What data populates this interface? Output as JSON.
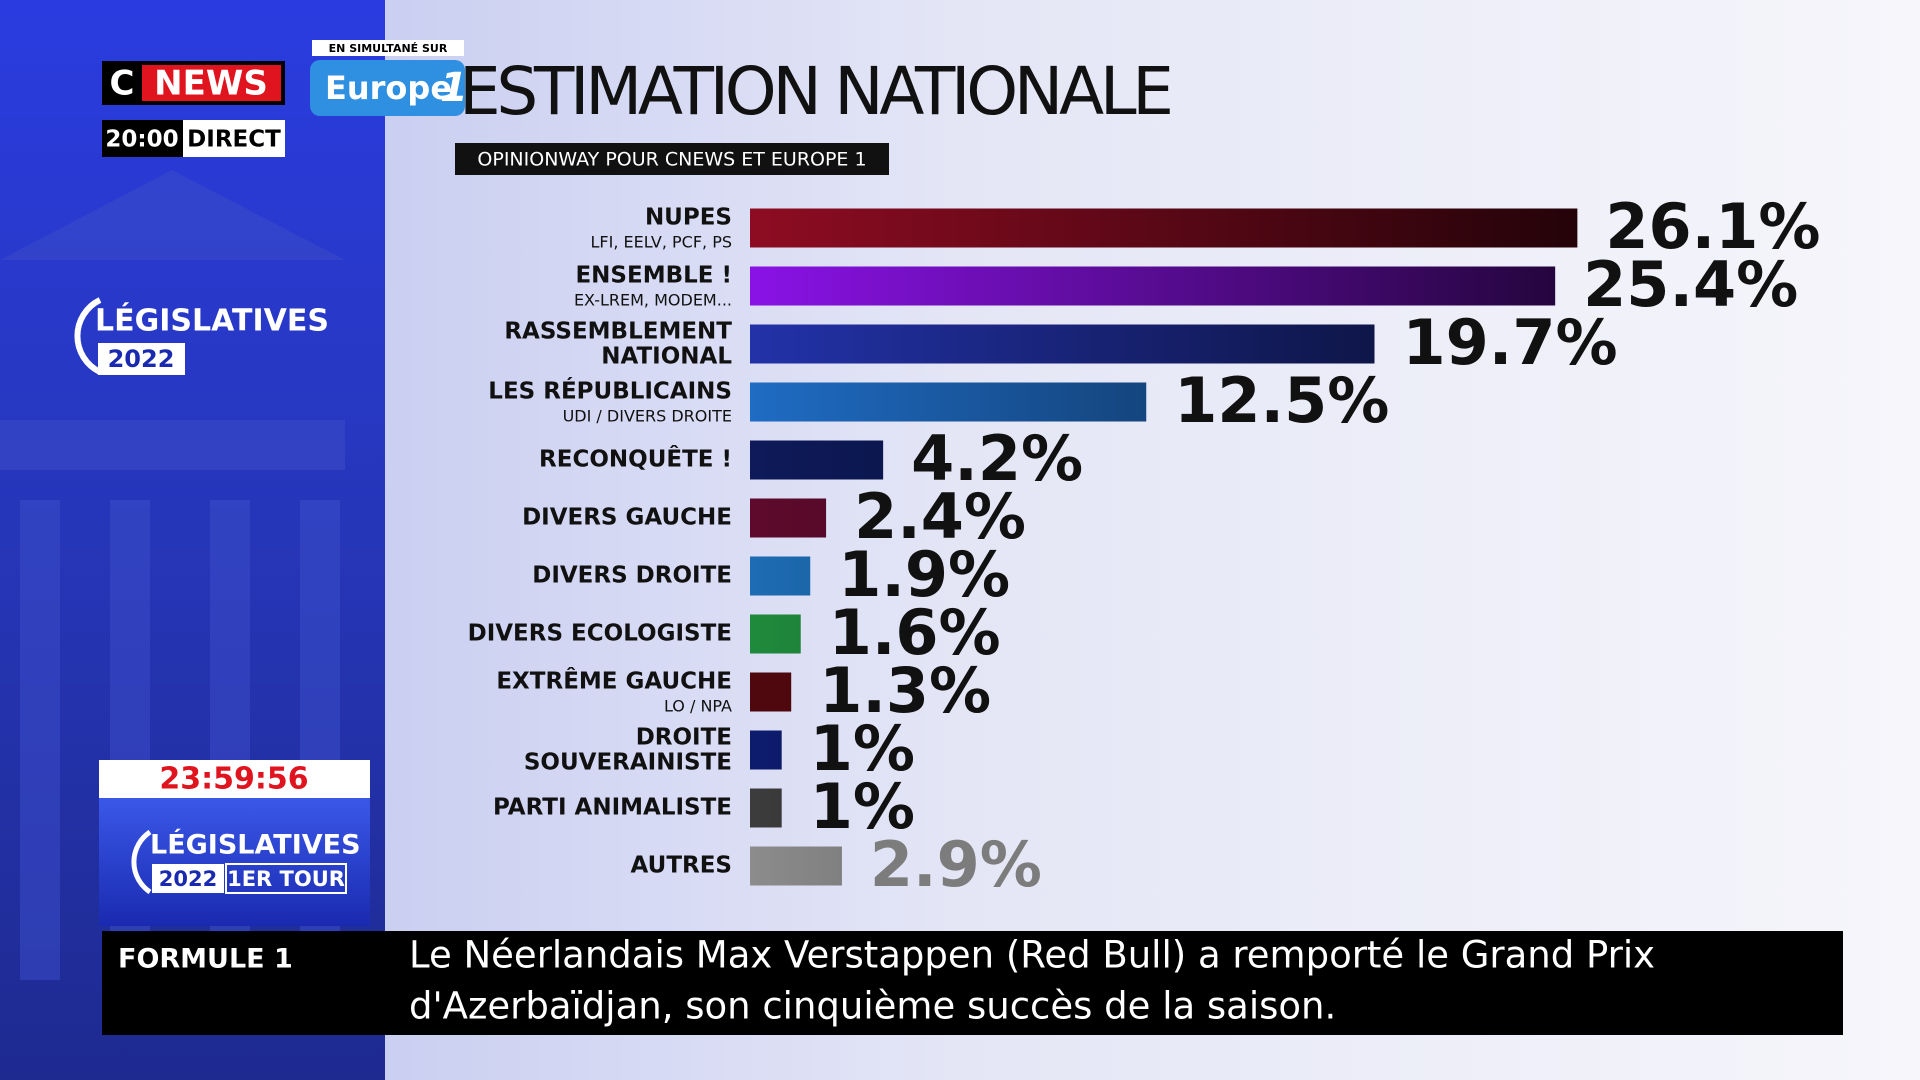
{
  "header": {
    "channel_prefix": "C",
    "channel": "NEWS",
    "time": "20:00",
    "live": "DIRECT",
    "simulcast": "EN SIMULTANÉ SUR",
    "partner": "Europe",
    "partner_number": "1"
  },
  "side": {
    "logo": "LÉGISLATIVES",
    "year": "2022",
    "clock": "23:59:56",
    "logo2": "LÉGISLATIVES",
    "year2": "2022",
    "round": "1ER TOUR"
  },
  "ticker": {
    "label": "FORMULE 1",
    "lines": [
      "Le Néerlandais Max Verstappen (Red Bull) a remporté le Grand Prix",
      "d'Azerbaïdjan, son cinquième succès de la saison."
    ]
  },
  "chart_data": {
    "type": "bar",
    "orientation": "horizontal",
    "title": "ESTIMATION NATIONALE",
    "subtitle": "OPINIONWAY POUR CNEWS ET EUROPE 1",
    "categories": [
      [
        "NUPES"
      ],
      [
        "ENSEMBLE !"
      ],
      [
        "RASSEMBLEMENT",
        "NATIONAL"
      ],
      [
        "LES RÉPUBLICAINS"
      ],
      [
        "RECONQUÊTE !"
      ],
      [
        "DIVERS GAUCHE"
      ],
      [
        "DIVERS DROITE"
      ],
      [
        "DIVERS ECOLOGISTE"
      ],
      [
        "EXTRÊME GAUCHE"
      ],
      [
        "DROITE",
        "SOUVERAINISTE"
      ],
      [
        "PARTI ANIMALISTE"
      ],
      [
        "AUTRES"
      ]
    ],
    "sublabels": [
      "LFI, EELV, PCF, PS",
      "EX-LREM, MODEM...",
      null,
      "UDI / DIVERS DROITE",
      null,
      null,
      null,
      null,
      "LO / NPA",
      null,
      null,
      null
    ],
    "values": [
      26.1,
      25.4,
      19.7,
      12.5,
      4.2,
      2.4,
      1.9,
      1.6,
      1.3,
      1,
      1,
      2.9
    ],
    "value_labels": [
      "26.1%",
      "25.4%",
      "19.7%",
      "12.5%",
      "4.2%",
      "2.4%",
      "1.9%",
      "1.6%",
      "1.3%",
      "1%",
      "1%",
      "2.9%"
    ],
    "colors": [
      "#8e0c22",
      "#8a12e6",
      "#2232a8",
      "#1f6cc4",
      "#0e1a5a",
      "#5e0a2c",
      "#1e6cb4",
      "#1f8a3c",
      "#50080f",
      "#0e1c6e",
      "#3c3c3c",
      "#8c8c8c"
    ],
    "value_label_colors": [
      "#111111",
      "#111111",
      "#111111",
      "#111111",
      "#111111",
      "#111111",
      "#111111",
      "#111111",
      "#111111",
      "#111111",
      "#111111",
      "#7c7c7c"
    ]
  }
}
